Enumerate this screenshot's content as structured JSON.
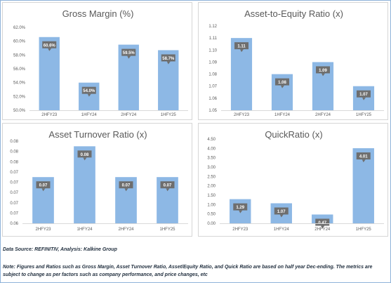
{
  "chart_data": [
    {
      "type": "bar",
      "title": "Gross Margin (%)",
      "categories": [
        "2HFY23",
        "1HFY24",
        "2HFY24",
        "1HFY25"
      ],
      "values": [
        60.6,
        54.0,
        59.5,
        58.7
      ],
      "data_labels": [
        "60.6%",
        "54.0%",
        "59.5%",
        "58.7%"
      ],
      "ylim": [
        50,
        62
      ],
      "yticks": [
        "50.0%",
        "52.0%",
        "54.0%",
        "56.0%",
        "58.0%",
        "60.0%",
        "62.0%"
      ],
      "ytick_values": [
        50,
        52,
        54,
        56,
        58,
        60,
        62
      ],
      "grid": false
    },
    {
      "type": "bar",
      "title": "Asset-to-Equity Ratio (x)",
      "categories": [
        "2HFY23",
        "1HFY24",
        "2HFY24",
        "1HFY25"
      ],
      "values": [
        1.11,
        1.08,
        1.09,
        1.07
      ],
      "data_labels": [
        "1.11",
        "1.08",
        "1.09",
        "1.07"
      ],
      "ylim": [
        1.05,
        1.12
      ],
      "yticks": [
        "1.05",
        "1.06",
        "1.07",
        "1.08",
        "1.09",
        "1.10",
        "1.11",
        "1.12"
      ],
      "ytick_values": [
        1.05,
        1.06,
        1.07,
        1.08,
        1.09,
        1.1,
        1.11,
        1.12
      ],
      "grid": false
    },
    {
      "type": "bar",
      "title": "Asset Turnover Ratio (x)",
      "categories": [
        "2HFY23",
        "1HFY24",
        "2HFY24",
        "1HFY25"
      ],
      "values": [
        0.07,
        0.08,
        0.07,
        0.07
      ],
      "data_labels": [
        "0.07",
        "0.08",
        "0.07",
        "0.07"
      ],
      "ylim": [
        0,
        8
      ],
      "yticks": [
        "0.06",
        "0.07",
        "0.07",
        "0.07",
        "0.07",
        "0.07",
        "0.08",
        "0.08",
        "0.08"
      ],
      "ytick_values": [
        0,
        1,
        2,
        3,
        4,
        5,
        6,
        7,
        8
      ],
      "bar_levels": [
        4.5,
        7.5,
        4.5,
        4.5
      ],
      "grid": false
    },
    {
      "type": "bar",
      "title": "QuickRatio (x)",
      "categories": [
        "2HFY23",
        "1HFY24",
        "2HFY24",
        "1HFY25"
      ],
      "values": [
        1.29,
        1.07,
        0.47,
        4.01
      ],
      "data_labels": [
        "1.29",
        "1.07",
        "0.47",
        "4.01"
      ],
      "ylim": [
        0,
        4.5
      ],
      "yticks": [
        "0.00",
        "0.50",
        "1.00",
        "1.50",
        "2.00",
        "2.50",
        "3.00",
        "3.50",
        "4.00",
        "4.50"
      ],
      "ytick_values": [
        0,
        0.5,
        1,
        1.5,
        2,
        2.5,
        3,
        3.5,
        4,
        4.5
      ],
      "grid": false
    }
  ],
  "colors": {
    "bar": "#8db8e5",
    "label_bg": "#6e6e6e",
    "text": "#595959"
  },
  "footer": {
    "source": "Data Source: REFINITIV, Analysis: Kalkine Group",
    "note": "Note: Figures and Ratios such as Gross Margin, Asset Turnover Ratio, Asset/Equity Ratio, and Quick Ratio are based on half year Dec-ending. The metrics are subject to change as per factors such as company performance, and price changes, etc"
  }
}
